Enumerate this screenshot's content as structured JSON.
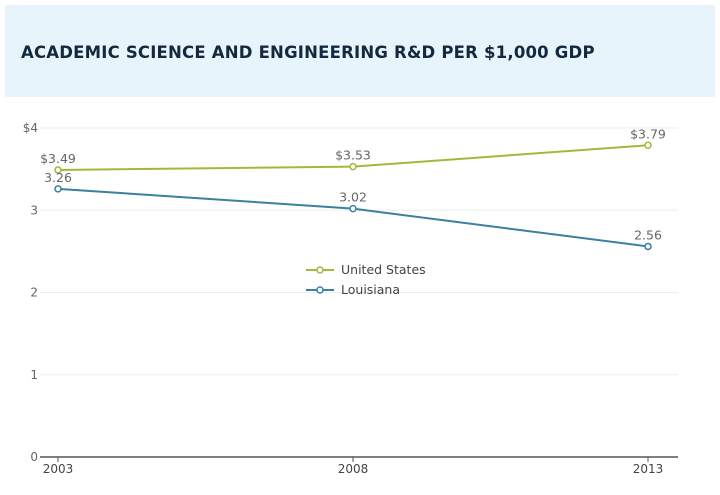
{
  "chart_data": {
    "type": "line",
    "title": "ACADEMIC SCIENCE AND ENGINEERING R&D PER $1,000 GDP",
    "xlabel": "",
    "ylabel": "",
    "x": [
      2003,
      2008,
      2013
    ],
    "x_tick_labels": [
      "2003",
      "2008",
      "2013"
    ],
    "ylim": [
      0,
      4
    ],
    "y_ticks": [
      0,
      1,
      2,
      3,
      4
    ],
    "y_tick_labels": [
      "0",
      "1",
      "2",
      "3",
      "$4"
    ],
    "grid": true,
    "legend_position": "center",
    "series": [
      {
        "name": "United States",
        "color": "#a3b83b",
        "values": [
          3.49,
          3.53,
          3.79
        ],
        "labels": [
          "$3.49",
          "$3.53",
          "$3.79"
        ]
      },
      {
        "name": "Louisiana",
        "color": "#3a80a2",
        "values": [
          3.26,
          3.02,
          2.56
        ],
        "labels": [
          "3.26",
          "3.02",
          "2.56"
        ]
      }
    ]
  }
}
